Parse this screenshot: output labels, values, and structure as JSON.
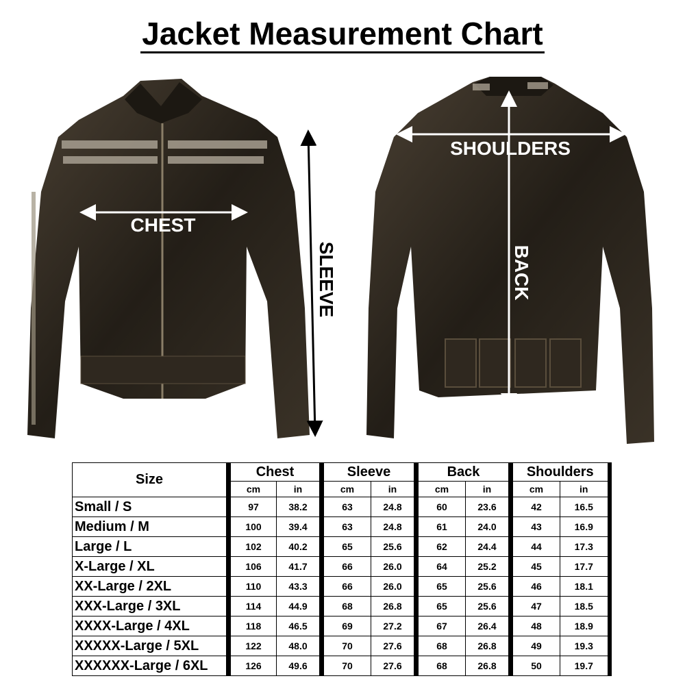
{
  "title": "Jacket Measurement Chart",
  "labels": {
    "chest": "CHEST",
    "sleeve": "SLEEVE",
    "shoulders": "SHOULDERS",
    "back": "BACK"
  },
  "colors": {
    "jacket": "#2a241c",
    "jacket_highlight": "#5a4e3c",
    "stripe": "#a79f90",
    "arrow": "#ffffff",
    "text": "#000000"
  },
  "table": {
    "size_header": "Size",
    "groups": [
      "Chest",
      "Sleeve",
      "Back",
      "Shoulders"
    ],
    "units": [
      "cm",
      "in"
    ],
    "rows": [
      {
        "size": "Small / S",
        "values": [
          "97",
          "38.2",
          "63",
          "24.8",
          "60",
          "23.6",
          "42",
          "16.5"
        ]
      },
      {
        "size": "Medium / M",
        "values": [
          "100",
          "39.4",
          "63",
          "24.8",
          "61",
          "24.0",
          "43",
          "16.9"
        ]
      },
      {
        "size": "Large / L",
        "values": [
          "102",
          "40.2",
          "65",
          "25.6",
          "62",
          "24.4",
          "44",
          "17.3"
        ]
      },
      {
        "size": "X-Large / XL",
        "values": [
          "106",
          "41.7",
          "66",
          "26.0",
          "64",
          "25.2",
          "45",
          "17.7"
        ]
      },
      {
        "size": "XX-Large / 2XL",
        "values": [
          "110",
          "43.3",
          "66",
          "26.0",
          "65",
          "25.6",
          "46",
          "18.1"
        ]
      },
      {
        "size": "XXX-Large / 3XL",
        "values": [
          "114",
          "44.9",
          "68",
          "26.8",
          "65",
          "25.6",
          "47",
          "18.5"
        ]
      },
      {
        "size": "XXXX-Large / 4XL",
        "values": [
          "118",
          "46.5",
          "69",
          "27.2",
          "67",
          "26.4",
          "48",
          "18.9"
        ]
      },
      {
        "size": "XXXXX-Large / 5XL",
        "values": [
          "122",
          "48.0",
          "70",
          "27.6",
          "68",
          "26.8",
          "49",
          "19.3"
        ]
      },
      {
        "size": "XXXXXX-Large / 6XL",
        "values": [
          "126",
          "49.6",
          "70",
          "27.6",
          "68",
          "26.8",
          "50",
          "19.7"
        ]
      }
    ]
  }
}
